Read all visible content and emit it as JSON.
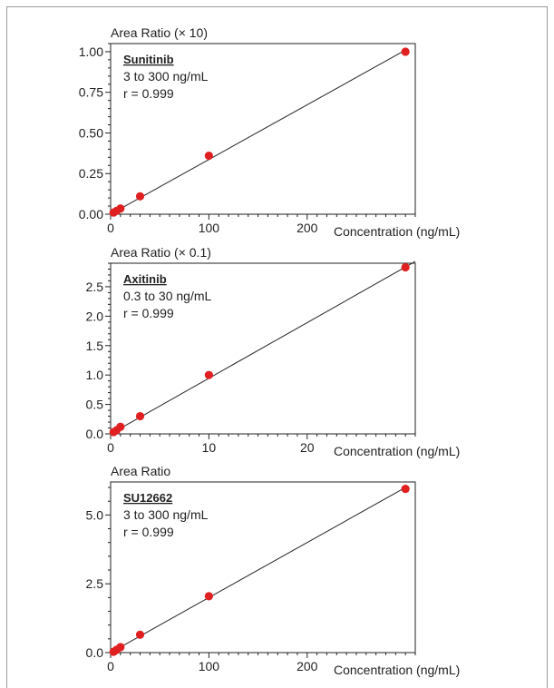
{
  "chart_data": [
    {
      "type": "scatter",
      "ylabel": "Area Ratio (× 10)",
      "xlabel": "Concentration (ng/mL)",
      "annotation": {
        "name": "Sunitinib",
        "range": "3 to 300 ng/mL",
        "r": "r = 0.999"
      },
      "xlim": [
        0,
        310
      ],
      "ylim": [
        0,
        1.05
      ],
      "xticks": [
        0,
        100,
        200
      ],
      "xtick_labels": [
        "0",
        "100",
        "200"
      ],
      "yticks": [
        0,
        0.25,
        0.5,
        0.75,
        1.0
      ],
      "ytick_labels": [
        "0.00",
        "0.25",
        "0.50",
        "0.75",
        "1.00"
      ],
      "points": [
        {
          "x": 3,
          "y": 0.01
        },
        {
          "x": 6,
          "y": 0.02
        },
        {
          "x": 10,
          "y": 0.035
        },
        {
          "x": 30,
          "y": 0.11
        },
        {
          "x": 100,
          "y": 0.36
        },
        {
          "x": 300,
          "y": 1.0
        }
      ],
      "fit": {
        "x": [
          0,
          300
        ],
        "y": [
          0.0,
          1.01
        ]
      }
    },
    {
      "type": "scatter",
      "ylabel": "Area Ratio (× 0.1)",
      "xlabel": "Concentration (ng/mL)",
      "annotation": {
        "name": "Axitinib",
        "range": "0.3 to 30 ng/mL",
        "r": "r = 0.999"
      },
      "xlim": [
        0,
        31
      ],
      "ylim": [
        0,
        2.9
      ],
      "xticks": [
        0,
        10,
        20
      ],
      "xtick_labels": [
        "0",
        "10",
        "20"
      ],
      "yticks": [
        0,
        0.5,
        1.0,
        1.5,
        2.0,
        2.5
      ],
      "ytick_labels": [
        "0.0",
        "0.5",
        "1.0",
        "1.5",
        "2.0",
        "2.5"
      ],
      "points": [
        {
          "x": 0.3,
          "y": 0.03
        },
        {
          "x": 0.6,
          "y": 0.06
        },
        {
          "x": 1,
          "y": 0.12
        },
        {
          "x": 3,
          "y": 0.3
        },
        {
          "x": 10,
          "y": 1.0
        },
        {
          "x": 30,
          "y": 2.83
        }
      ],
      "fit": {
        "x": [
          0,
          31
        ],
        "y": [
          0.0,
          2.93
        ]
      }
    },
    {
      "type": "scatter",
      "ylabel": "Area Ratio",
      "xlabel": "Concentration (ng/mL)",
      "annotation": {
        "name": "SU12662",
        "range": "3 to 300 ng/mL",
        "r": "r = 0.999"
      },
      "xlim": [
        0,
        310
      ],
      "ylim": [
        0,
        6.2
      ],
      "xticks": [
        0,
        100,
        200
      ],
      "xtick_labels": [
        "0",
        "100",
        "200"
      ],
      "yticks": [
        0,
        2.5,
        5.0
      ],
      "ytick_labels": [
        "0.0",
        "2.5",
        "5.0"
      ],
      "points": [
        {
          "x": 3,
          "y": 0.03
        },
        {
          "x": 6,
          "y": 0.1
        },
        {
          "x": 10,
          "y": 0.2
        },
        {
          "x": 30,
          "y": 0.65
        },
        {
          "x": 100,
          "y": 2.05
        },
        {
          "x": 300,
          "y": 5.95
        }
      ],
      "fit": {
        "x": [
          0,
          300
        ],
        "y": [
          0.0,
          6.0
        ]
      }
    }
  ],
  "colors": {
    "points": "#e02020",
    "line": "#222222",
    "frame": "#9a9a9a"
  }
}
